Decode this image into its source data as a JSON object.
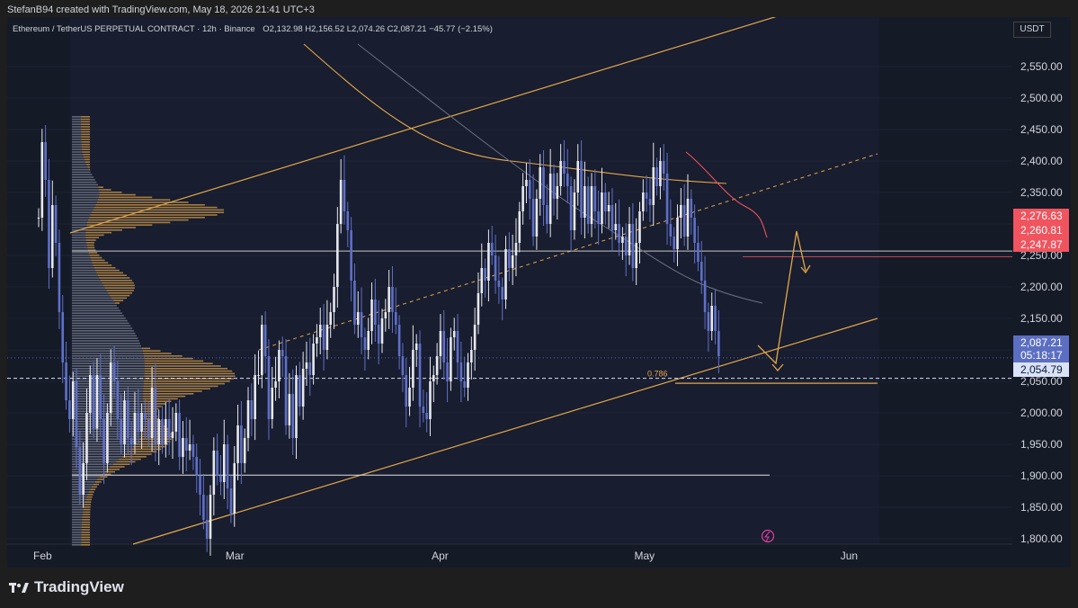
{
  "header": {
    "author_line": "StefanB94 created with TradingView.com, May 18, 2026 21:41 UTC+3",
    "symbol": "Ethereum / TetherUS PERPETUAL CONTRACT · 12h · Binance",
    "ohlc": "O2,132.98  H2,156.52  L2,074.26  C2,087.21  −45.77 (−2.15%)",
    "currency": "USDT"
  },
  "footer": {
    "brand": "TradingView"
  },
  "colors": {
    "background": "#151a27",
    "orange": "#e3a74a",
    "red": "#f0545e",
    "blue": "#5b6ec2",
    "grid": "#252a3a"
  },
  "chart_data": {
    "type": "candlestick",
    "ylim": [
      1770,
      2580
    ],
    "y_ticks": [
      "2,550.00",
      "2,500.00",
      "2,450.00",
      "2,400.00",
      "2,350.00",
      "2,300.00",
      "2,250.00",
      "2,200.00",
      "2,150.00",
      "2,100.00",
      "2,050.00",
      "2,000.00",
      "1,950.00",
      "1,900.00",
      "1,850.00",
      "1,800.00"
    ],
    "y_tick_values": [
      2550,
      2500,
      2450,
      2400,
      2350,
      2300,
      2250,
      2200,
      2150,
      2100,
      2050,
      2000,
      1950,
      1900,
      1850,
      1800
    ],
    "x_labels": [
      "Feb",
      "Mar",
      "Apr",
      "May",
      "Jun"
    ],
    "x_label_index": [
      0,
      56,
      116,
      175,
      235
    ],
    "price_labels": [
      {
        "value": 2276.63,
        "text": "2,276.63",
        "color": "#f0545e"
      },
      {
        "value": 2260.81,
        "text": "2,260.81",
        "color": "#f0545e"
      },
      {
        "value": 2247.87,
        "text": "2,247.87",
        "color": "#f0545e"
      },
      {
        "value": 2087.21,
        "text": "2,087.21",
        "color": "#5b6ec2"
      },
      {
        "value": 2076.0,
        "text": "05:18:17",
        "color": "#5b6ec2"
      },
      {
        "value": 2054.79,
        "text": "2,054.79",
        "color": "#d9e2f7"
      }
    ],
    "fib_label": "0.786",
    "horizontal_levels": [
      2257,
      1901,
      2054.79,
      2047
    ],
    "candles_close": [
      2310,
      2430,
      2370,
      2230,
      2330,
      2270,
      2160,
      2080,
      2020,
      1990,
      2050,
      1945,
      1870,
      1920,
      2000,
      2060,
      1975,
      2060,
      1990,
      1920,
      2000,
      2080,
      2050,
      1990,
      1950,
      2020,
      1960,
      1950,
      2000,
      1970,
      2000,
      1990,
      1960,
      2040,
      1950,
      1990,
      1950,
      1990,
      1960,
      1970,
      2000,
      1930,
      1960,
      1940,
      1950,
      1930,
      1900,
      1870,
      1830,
      1800,
      1870,
      1940,
      1900,
      1890,
      1950,
      1880,
      1840,
      1920,
      1980,
      1920,
      1960,
      2020,
      1990,
      2060,
      2060,
      2140,
      2090,
      1990,
      2040,
      2050,
      2100,
      2090,
      1980,
      2030,
      1960,
      2060,
      2010,
      2070,
      2080,
      2060,
      2110,
      2120,
      2140,
      2100,
      2140,
      2160,
      2200,
      2300,
      2370,
      2320,
      2290,
      2210,
      2140,
      2160,
      2120,
      2100,
      2130,
      2180,
      2140,
      2110,
      2150,
      2160,
      2200,
      2160,
      2140,
      2090,
      2060,
      2010,
      2040,
      2100,
      2110,
      2010,
      2000,
      1990,
      2050,
      2060,
      2090,
      2130,
      2080,
      2050,
      2120,
      2130,
      2080,
      2050,
      2040,
      2080,
      2100,
      2140,
      2190,
      2230,
      2210,
      2270,
      2250,
      2210,
      2200,
      2180,
      2260,
      2230,
      2250,
      2270,
      2320,
      2360,
      2370,
      2340,
      2280,
      2340,
      2390,
      2330,
      2300,
      2380,
      2340,
      2360,
      2400,
      2380,
      2360,
      2290,
      2350,
      2400,
      2310,
      2360,
      2300,
      2360,
      2320,
      2300,
      2350,
      2320,
      2330,
      2290,
      2300,
      2270,
      2280,
      2250,
      2300,
      2230,
      2270,
      2320,
      2350,
      2340,
      2330,
      2390,
      2360,
      2400,
      2380,
      2300,
      2280,
      2260,
      2310,
      2330,
      2280,
      2340,
      2310,
      2270,
      2240,
      2210,
      2160,
      2130,
      2170,
      2130,
      2090
    ]
  }
}
